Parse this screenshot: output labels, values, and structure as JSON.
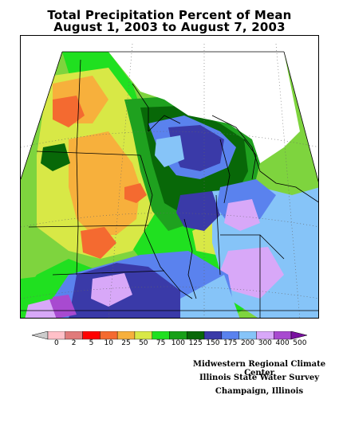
{
  "title": {
    "line1": "Total Precipitation Percent of Mean",
    "line2": "August 1, 2003 to August 7, 2003"
  },
  "legend": {
    "labels": [
      "0",
      "2",
      "5",
      "10",
      "25",
      "50",
      "75",
      "100",
      "125",
      "150",
      "175",
      "200",
      "300",
      "400",
      "500"
    ],
    "colors": [
      "#cccccc",
      "#ffc0c8",
      "#e07a7a",
      "#ff0000",
      "#f46a30",
      "#f7b03c",
      "#d8e846",
      "#20e020",
      "#18a018",
      "#086808",
      "#3a3aa8",
      "#5a82ee",
      "#86c4f8",
      "#d8a8f8",
      "#a84ad0",
      "#7a10a0"
    ]
  },
  "map": {
    "fill_colors": {
      "background": "#7ed43e",
      "greener": "#3acb3a",
      "midgreen": "#1fa11f",
      "darkgreen": "#086808",
      "yellowgreen": "#d8e846",
      "orange": "#f7b03c",
      "redorange": "#f46a30",
      "navy": "#3a3aa8",
      "blue": "#5a82ee",
      "lightblue": "#86c4f8",
      "lavender": "#d8a8f8",
      "purple": "#a84ad0"
    }
  },
  "credits": {
    "line1": "Midwestern Regional Climate Center",
    "line2": "Illinois State Water Survey",
    "line3": "Champaign, Illinois"
  }
}
